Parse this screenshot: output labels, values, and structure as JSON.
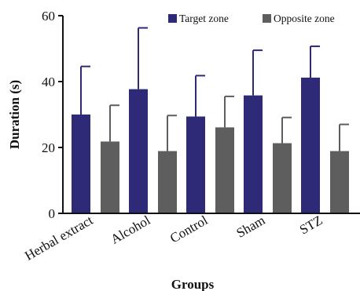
{
  "chart_data": {
    "type": "bar",
    "title": "",
    "xlabel": "Groups",
    "ylabel": "Duration (s)",
    "ylim": [
      0,
      60
    ],
    "yticks": [
      0,
      20,
      40,
      60
    ],
    "categories": [
      "Herbal extract",
      "Alcohol",
      "Control",
      "Sham",
      "STZ"
    ],
    "series": [
      {
        "name": "Target zone",
        "color": "#2e2a78",
        "values": [
          30.0,
          37.7,
          29.4,
          35.8,
          41.2
        ],
        "errors": [
          14.6,
          18.6,
          12.4,
          13.7,
          9.5
        ]
      },
      {
        "name": "Opposite zone",
        "color": "#5e5e5e",
        "values": [
          21.8,
          18.9,
          26.1,
          21.3,
          18.9
        ],
        "errors": [
          11.0,
          10.8,
          9.4,
          7.8,
          8.1
        ]
      }
    ],
    "grid": false,
    "legend_position": "top-right"
  }
}
